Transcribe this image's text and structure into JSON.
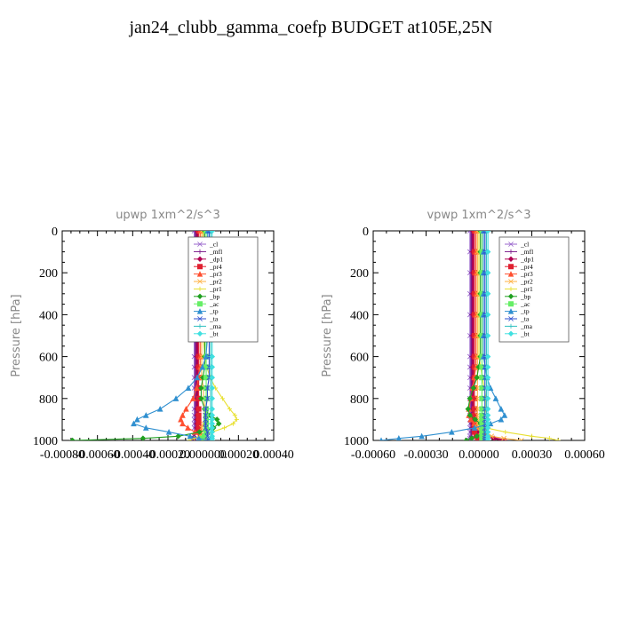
{
  "title": "jan24_clubb_gamma_coefp  BUDGET at105E,25N",
  "series_colors": {
    "_cl": "#9966cc",
    "_mfl": "#7a1a8a",
    "_dp1": "#b00050",
    "_pr4": "#e02030",
    "_pr3": "#ff5030",
    "_pr2": "#ffb040",
    "_pr1": "#e8e030",
    "_bp": "#20a020",
    "_ac": "#66ee66",
    "_tp": "#3090d0",
    "_ta": "#3050d0",
    "_ma": "#30c0c0",
    "_bt": "#40e0e0"
  },
  "legend_entries": [
    "_cl",
    "_mfl",
    "_dp1",
    "_pr4",
    "_pr3",
    "_pr2",
    "_pr1",
    "_bp",
    "_ac",
    "_tp",
    "_ta",
    "_ma",
    "_bt"
  ],
  "chart_data": [
    {
      "type": "line",
      "title": "upwp   1xm^2/s^3",
      "ylabel": "Pressure [hPa]",
      "xlim": [
        -0.0008,
        0.0004
      ],
      "ylim": [
        1000,
        0
      ],
      "xticks": [
        "-0.00080",
        "-0.00060",
        "-0.00040",
        "-0.00020",
        "0.000000",
        "0.00020",
        "0.00040"
      ],
      "xtick_values": [
        -0.0008,
        -0.0006,
        -0.0004,
        -0.0002,
        0,
        0.0002,
        0.0004
      ],
      "yticks": [
        "0",
        "200",
        "400",
        "600",
        "800",
        "1000"
      ],
      "ytick_values": [
        0,
        200,
        400,
        600,
        800,
        1000
      ],
      "legend_position": "top-right",
      "pressure": [
        0,
        100,
        200,
        300,
        400,
        500,
        600,
        650,
        700,
        750,
        800,
        850,
        880,
        900,
        920,
        940,
        960,
        980,
        990,
        1000
      ],
      "series": [
        {
          "name": "_cl",
          "values": [
            0,
            0,
            0,
            0,
            0,
            0,
            0,
            0,
            0,
            0,
            0,
            0,
            0,
            0,
            0,
            0,
            0,
            0,
            0,
            0
          ]
        },
        {
          "name": "_mfl",
          "values": [
            0,
            0,
            0,
            0,
            0,
            0,
            0,
            0,
            0,
            0,
            0,
            0,
            0,
            0,
            0,
            0,
            0,
            -1e-05,
            -2e-05,
            0
          ]
        },
        {
          "name": "_dp1",
          "values": [
            0,
            0,
            0,
            0,
            0,
            0,
            0,
            0,
            0,
            0,
            0,
            0,
            0,
            0,
            0,
            0,
            1e-05,
            2e-05,
            3e-05,
            5e-05
          ]
        },
        {
          "name": "_pr4",
          "values": [
            0,
            0,
            0,
            0,
            0,
            0,
            0,
            0,
            0,
            0,
            0,
            0,
            0,
            0,
            0,
            0,
            0,
            1e-05,
            1e-05,
            2e-05
          ]
        },
        {
          "name": "_pr3",
          "values": [
            0,
            0,
            0,
            0,
            0,
            0,
            0,
            0,
            -1e-05,
            -2e-05,
            -4e-05,
            -8e-05,
            -0.0001,
            -0.00011,
            -0.0001,
            -7e-05,
            -3e-05,
            1e-05,
            3e-05,
            5e-05
          ]
        },
        {
          "name": "_pr2",
          "values": [
            0,
            0,
            0,
            0,
            0,
            0,
            0,
            0,
            0,
            1e-05,
            1e-05,
            2e-05,
            2e-05,
            2e-05,
            1e-05,
            0,
            0,
            0,
            0,
            0
          ]
        },
        {
          "name": "_pr1",
          "values": [
            0,
            0,
            0,
            0,
            0,
            0,
            1e-05,
            2e-05,
            4e-05,
            7e-05,
            0.00011,
            0.00015,
            0.00018,
            0.00019,
            0.00017,
            0.00012,
            5e-05,
            -2e-05,
            -5e-05,
            -8e-05
          ]
        },
        {
          "name": "_bp",
          "values": [
            0,
            0,
            0,
            0,
            0,
            0,
            0,
            0,
            -1e-05,
            -2e-05,
            -2e-05,
            0,
            3e-05,
            7e-05,
            8e-05,
            5e-05,
            -3e-05,
            -0.00015,
            -0.00035,
            -0.00075
          ]
        },
        {
          "name": "_ac",
          "values": [
            0,
            0,
            0,
            0,
            0,
            0,
            0,
            0,
            0,
            0,
            0,
            0,
            0,
            0,
            0,
            0,
            0,
            -1e-05,
            -2e-05,
            -3e-05
          ]
        },
        {
          "name": "_tp",
          "values": [
            0,
            0,
            0,
            0,
            0,
            0,
            -1e-05,
            -3e-05,
            -6e-05,
            -0.00011,
            -0.00018,
            -0.00027,
            -0.00035,
            -0.0004,
            -0.00042,
            -0.00035,
            -0.00022,
            -0.0001,
            -5e-05,
            0
          ]
        },
        {
          "name": "_ta",
          "values": [
            0,
            0,
            0,
            0,
            0,
            0,
            0,
            0,
            0,
            -1e-05,
            -1e-05,
            -2e-05,
            -2e-05,
            -2e-05,
            -2e-05,
            -2e-05,
            -1e-05,
            -1e-05,
            0,
            0
          ]
        },
        {
          "name": "_ma",
          "values": [
            0,
            0,
            0,
            0,
            0,
            0,
            0,
            0,
            0,
            0,
            0,
            0,
            0,
            0,
            0,
            0,
            0,
            0,
            0,
            0
          ]
        },
        {
          "name": "_bt",
          "values": [
            0,
            0,
            0,
            0,
            0,
            0,
            0,
            0,
            0,
            0,
            0,
            0,
            0,
            0,
            0,
            0,
            0,
            0,
            0,
            0
          ]
        }
      ]
    },
    {
      "type": "line",
      "title": "vpwp   1xm^2/s^3",
      "ylabel": "Pressure [hPa]",
      "xlim": [
        -0.0006,
        0.0006
      ],
      "ylim": [
        1000,
        0
      ],
      "xticks": [
        "-0.00060",
        "-0.00030",
        "0.00000",
        "0.00030",
        "0.00060"
      ],
      "xtick_values": [
        -0.0006,
        -0.0003,
        0,
        0.0003,
        0.0006
      ],
      "yticks": [
        "0",
        "200",
        "400",
        "600",
        "800",
        "1000"
      ],
      "ytick_values": [
        0,
        200,
        400,
        600,
        800,
        1000
      ],
      "legend_position": "top-right",
      "pressure": [
        0,
        100,
        200,
        300,
        400,
        500,
        600,
        650,
        700,
        750,
        800,
        850,
        880,
        900,
        920,
        940,
        960,
        980,
        990,
        1000
      ],
      "series": [
        {
          "name": "_cl",
          "values": [
            0,
            0,
            0,
            0,
            0,
            0,
            0,
            0,
            0,
            0,
            0,
            0,
            0,
            0,
            0,
            0,
            0,
            0,
            0,
            0
          ]
        },
        {
          "name": "_mfl",
          "values": [
            0,
            0,
            0,
            0,
            0,
            0,
            0,
            0,
            0,
            0,
            0,
            0,
            0,
            0,
            0,
            0,
            0,
            0,
            0,
            0
          ]
        },
        {
          "name": "_dp1",
          "values": [
            0,
            0,
            0,
            0,
            0,
            0,
            0,
            0,
            0,
            0,
            0,
            0,
            0,
            0,
            0,
            0,
            3e-05,
            7e-05,
            0.00012,
            0.00018
          ]
        },
        {
          "name": "_pr4",
          "values": [
            0,
            0,
            0,
            0,
            0,
            0,
            0,
            0,
            0,
            0,
            0,
            0,
            0,
            0,
            0,
            0,
            0,
            1e-05,
            2e-05,
            3e-05
          ]
        },
        {
          "name": "_pr3",
          "values": [
            0,
            0,
            0,
            0,
            0,
            0,
            0,
            0,
            -1e-05,
            -2e-05,
            -3e-05,
            -4e-05,
            -4e-05,
            -3e-05,
            -1e-05,
            1e-05,
            3e-05,
            5e-05,
            6e-05,
            7e-05
          ]
        },
        {
          "name": "_pr2",
          "values": [
            0,
            0,
            0,
            0,
            0,
            0,
            0,
            0,
            0,
            0,
            0,
            0,
            0,
            0,
            0,
            0,
            2e-05,
            8e-05,
            0.00015,
            0.00025
          ]
        },
        {
          "name": "_pr1",
          "values": [
            0,
            0,
            0,
            0,
            0,
            0,
            0,
            1e-05,
            2e-05,
            3e-05,
            4e-05,
            4e-05,
            3e-05,
            1e-05,
            0,
            4e-05,
            0.00015,
            0.0003,
            0.0004,
            0.00045
          ]
        },
        {
          "name": "_bp",
          "values": [
            0,
            0,
            0,
            0,
            0,
            0,
            0,
            -1e-05,
            -2e-05,
            -4e-05,
            -6e-05,
            -7e-05,
            -6e-05,
            -3e-05,
            0,
            2e-05,
            2e-05,
            -2e-05,
            -5e-05,
            -8e-05
          ]
        },
        {
          "name": "_ac",
          "values": [
            0,
            0,
            0,
            0,
            0,
            0,
            0,
            0,
            0,
            0,
            0,
            0,
            0,
            0,
            0,
            0,
            0,
            0,
            0,
            0
          ]
        },
        {
          "name": "_tp",
          "values": [
            0,
            0,
            0,
            0,
            0,
            0,
            0,
            1e-05,
            2e-05,
            4e-05,
            7e-05,
            0.0001,
            0.00012,
            0.0001,
            4e-05,
            -5e-05,
            -0.00018,
            -0.00035,
            -0.00048,
            -0.00058
          ]
        },
        {
          "name": "_ta",
          "values": [
            0,
            0,
            0,
            0,
            0,
            0,
            0,
            0,
            0,
            0,
            0,
            0,
            0,
            0,
            0,
            0,
            0,
            0,
            0,
            0
          ]
        },
        {
          "name": "_ma",
          "values": [
            0,
            0,
            0,
            0,
            0,
            0,
            0,
            0,
            0,
            0,
            0,
            0,
            0,
            0,
            0,
            0,
            0,
            0,
            0,
            0
          ]
        },
        {
          "name": "_bt",
          "values": [
            0,
            0,
            0,
            0,
            0,
            0,
            0,
            0,
            0,
            0,
            0,
            0,
            0,
            0,
            0,
            0,
            0,
            0,
            0,
            0
          ]
        }
      ]
    }
  ]
}
